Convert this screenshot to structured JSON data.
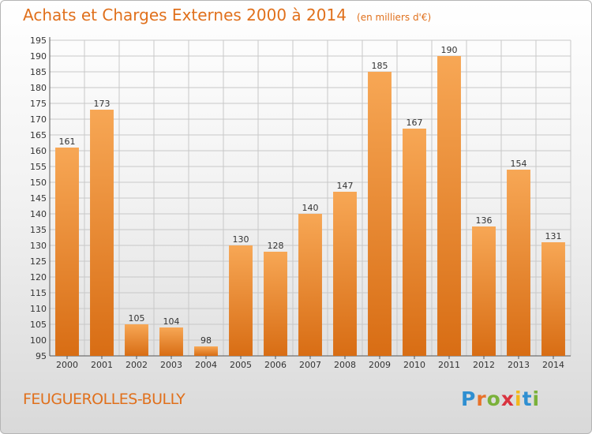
{
  "header": {
    "title": "Achats et Charges Externes 2000 à 2014",
    "unit": "(en milliers d'€)"
  },
  "footer": {
    "city": "FEUGUEROLLES-BULLY",
    "logo": "Proxiti"
  },
  "colors": {
    "bar_top": "#f7a755",
    "bar_bottom": "#d86d14",
    "text_accent": "#e0701c",
    "grid": "#c8c8c8"
  },
  "chart_data": {
    "type": "bar",
    "title": "Achats et Charges Externes 2000 à 2014",
    "categories": [
      "2000",
      "2001",
      "2002",
      "2003",
      "2004",
      "2005",
      "2006",
      "2007",
      "2008",
      "2009",
      "2010",
      "2011",
      "2012",
      "2013",
      "2014"
    ],
    "values": [
      161,
      173,
      105,
      104,
      98,
      130,
      128,
      140,
      147,
      185,
      167,
      190,
      136,
      154,
      131
    ],
    "ylim": [
      95,
      195
    ],
    "yticks": [
      95,
      100,
      105,
      110,
      115,
      120,
      125,
      130,
      135,
      140,
      145,
      150,
      155,
      160,
      165,
      170,
      175,
      180,
      185,
      190,
      195
    ],
    "grid": true,
    "data_labels": true
  }
}
